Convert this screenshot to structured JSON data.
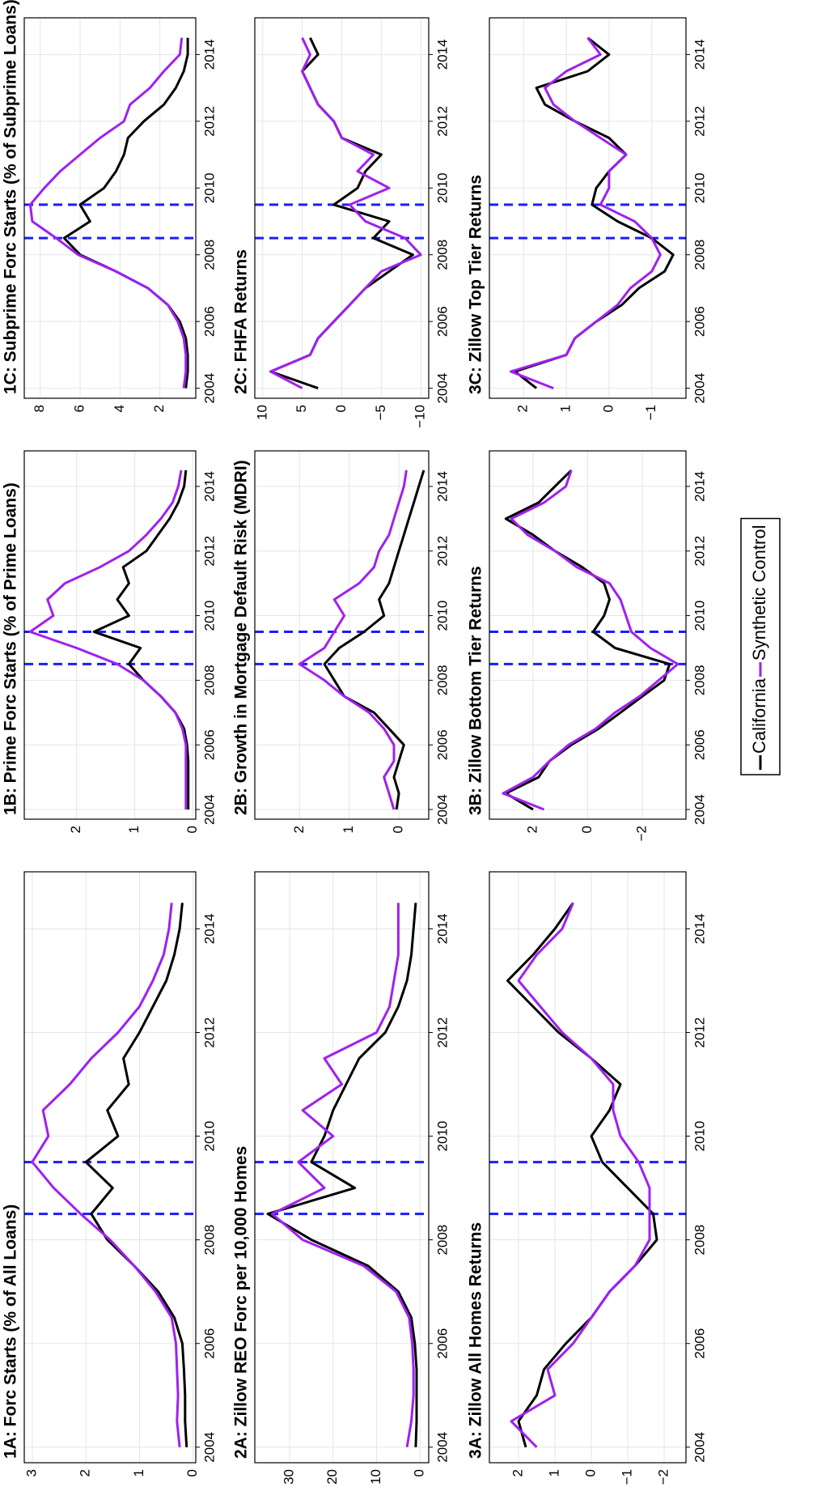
{
  "chart_data": [
    {
      "type": "line",
      "title": "1A: Forc Starts (% of All Loans)",
      "x": [
        2004,
        2004.5,
        2005,
        2005.5,
        2006,
        2006.5,
        2007,
        2007.5,
        2008,
        2008.5,
        2009,
        2009.5,
        2010,
        2010.5,
        2011,
        2011.5,
        2012,
        2012.5,
        2013,
        2013.5,
        2014,
        2014.5
      ],
      "series": [
        {
          "name": "California",
          "color": "#000000",
          "values": [
            0.12,
            0.15,
            0.15,
            0.17,
            0.2,
            0.35,
            0.65,
            1.1,
            1.6,
            1.9,
            1.5,
            2.0,
            1.4,
            1.6,
            1.2,
            1.3,
            1.0,
            0.75,
            0.5,
            0.35,
            0.25,
            0.2
          ]
        },
        {
          "name": "Synthetic Control",
          "color": "#a020f0",
          "values": [
            0.25,
            0.3,
            0.28,
            0.3,
            0.32,
            0.4,
            0.7,
            1.1,
            1.55,
            2.1,
            2.6,
            3.0,
            2.7,
            2.8,
            2.3,
            1.9,
            1.4,
            1.0,
            0.75,
            0.55,
            0.45,
            0.4
          ]
        }
      ],
      "xlim": [
        2003.7,
        2015.1
      ],
      "xticks": [
        2004,
        2006,
        2008,
        2010,
        2012,
        2014
      ],
      "ylim": [
        -0.05,
        3.15
      ],
      "yticks": [
        0,
        1,
        2,
        3
      ],
      "vlines": [
        2008.5,
        2009.5
      ],
      "grid": true
    },
    {
      "type": "line",
      "title": "1B: Prime Forc Starts (% of Prime Loans)",
      "x": [
        2004,
        2004.5,
        2005,
        2005.5,
        2006,
        2006.5,
        2007,
        2007.5,
        2008,
        2008.5,
        2009,
        2009.5,
        2010,
        2010.5,
        2011,
        2011.5,
        2012,
        2012.5,
        2013,
        2013.5,
        2014,
        2014.5
      ],
      "series": [
        {
          "name": "California",
          "color": "#000000",
          "values": [
            0.08,
            0.08,
            0.08,
            0.08,
            0.1,
            0.15,
            0.3,
            0.55,
            0.85,
            1.1,
            0.9,
            1.7,
            1.1,
            1.3,
            1.1,
            1.2,
            0.8,
            0.6,
            0.4,
            0.25,
            0.15,
            0.12
          ]
        },
        {
          "name": "Synthetic Control",
          "color": "#a020f0",
          "values": [
            0.12,
            0.12,
            0.12,
            0.12,
            0.12,
            0.18,
            0.3,
            0.55,
            0.85,
            1.3,
            2.0,
            2.8,
            2.4,
            2.5,
            2.2,
            1.6,
            1.1,
            0.8,
            0.55,
            0.35,
            0.25,
            0.2
          ]
        }
      ],
      "xlim": [
        2003.7,
        2015.1
      ],
      "xticks": [
        2004,
        2006,
        2008,
        2010,
        2012,
        2014
      ],
      "ylim": [
        -0.05,
        2.9
      ],
      "yticks": [
        0,
        1,
        2
      ],
      "vlines": [
        2008.5,
        2009.5
      ],
      "grid": true
    },
    {
      "type": "line",
      "title": "1C: Subprime Forc Starts (% of Subprime Loans)",
      "x": [
        2004,
        2004.5,
        2005,
        2005.5,
        2006,
        2006.5,
        2007,
        2007.5,
        2008,
        2008.5,
        2009,
        2009.5,
        2010,
        2010.5,
        2011,
        2011.5,
        2012,
        2012.5,
        2013,
        2013.5,
        2014,
        2014.5
      ],
      "series": [
        {
          "name": "California",
          "color": "#000000",
          "values": [
            0.7,
            0.6,
            0.6,
            0.7,
            1.0,
            1.6,
            2.6,
            4.2,
            6.0,
            6.8,
            5.5,
            6.0,
            4.8,
            4.2,
            3.8,
            3.6,
            2.8,
            1.8,
            1.2,
            0.8,
            0.6,
            0.6
          ]
        },
        {
          "name": "Synthetic Control",
          "color": "#a020f0",
          "values": [
            0.8,
            0.7,
            0.7,
            0.8,
            1.1,
            1.6,
            2.6,
            4.2,
            6.1,
            7.2,
            8.4,
            8.5,
            7.8,
            7.0,
            6.0,
            5.0,
            3.8,
            3.5,
            2.5,
            1.8,
            1.0,
            0.9
          ]
        }
      ],
      "xlim": [
        2003.7,
        2015.1
      ],
      "xticks": [
        2004,
        2006,
        2008,
        2010,
        2012,
        2014
      ],
      "ylim": [
        0.2,
        8.8
      ],
      "yticks": [
        2,
        4,
        6,
        8
      ],
      "vlines": [
        2008.5,
        2009.5
      ],
      "grid": true
    },
    {
      "type": "line",
      "title": "2A: Zillow REO Forc per 10,000 Homes",
      "x": [
        2004,
        2004.5,
        2005,
        2005.5,
        2006,
        2006.5,
        2007,
        2007.5,
        2008,
        2008.5,
        2009,
        2009.5,
        2010,
        2010.5,
        2011,
        2011.5,
        2012,
        2012.5,
        2013,
        2013.5,
        2014,
        2014.5
      ],
      "series": [
        {
          "name": "California",
          "color": "#000000",
          "values": [
            1,
            0.8,
            0.8,
            0.8,
            1.2,
            2,
            5,
            12,
            25,
            35,
            15,
            25,
            22,
            20,
            17,
            14,
            8,
            5,
            3,
            2,
            1.5,
            1
          ]
        },
        {
          "name": "Synthetic Control",
          "color": "#a020f0",
          "values": [
            3,
            2,
            1.5,
            1.5,
            1.8,
            2.5,
            5.5,
            13,
            27,
            34,
            22,
            28,
            20,
            27,
            18,
            22,
            10,
            7,
            6,
            5,
            5,
            5
          ]
        }
      ],
      "xlim": [
        2003.7,
        2015.1
      ],
      "xticks": [
        2004,
        2006,
        2008,
        2010,
        2012,
        2014
      ],
      "ylim": [
        -2,
        38
      ],
      "yticks": [
        0,
        10,
        20,
        30
      ],
      "vlines": [
        2008.5,
        2009.5
      ],
      "grid": true
    },
    {
      "type": "line",
      "title": "2B: Growth in Mortgage Default Risk (MDRI)",
      "x": [
        2004,
        2004.5,
        2005,
        2005.5,
        2006,
        2006.5,
        2007,
        2007.5,
        2008,
        2008.5,
        2009,
        2009.5,
        2010,
        2010.5,
        2011,
        2011.5,
        2012,
        2012.5,
        2013,
        2013.5,
        2014,
        2014.5
      ],
      "series": [
        {
          "name": "California",
          "color": "#000000",
          "values": [
            0.05,
            0,
            0.1,
            0,
            -0.1,
            0.2,
            0.5,
            1.1,
            1.3,
            1.5,
            1.2,
            0.7,
            0.3,
            0.4,
            0.2,
            0.1,
            0,
            -0.1,
            -0.2,
            -0.3,
            -0.4,
            -0.5
          ]
        },
        {
          "name": "Synthetic Control",
          "color": "#a020f0",
          "values": [
            0.1,
            0.2,
            0.3,
            0.1,
            0.1,
            0.3,
            0.6,
            1.1,
            1.5,
            2.0,
            1.5,
            1.3,
            1.1,
            1.3,
            0.8,
            0.5,
            0.4,
            0.2,
            0.1,
            0,
            -0.1,
            -0.15
          ]
        }
      ],
      "xlim": [
        2003.7,
        2015.1
      ],
      "xticks": [
        2004,
        2006,
        2008,
        2010,
        2012,
        2014
      ],
      "ylim": [
        -0.6,
        2.9
      ],
      "yticks": [
        0,
        1,
        2
      ],
      "vlines": [
        2008.5,
        2009.5
      ],
      "grid": true
    },
    {
      "type": "line",
      "title": "2C: FHFA Returns",
      "x": [
        2004,
        2004.5,
        2005,
        2005.5,
        2006,
        2006.5,
        2007,
        2007.5,
        2008,
        2008.5,
        2009,
        2009.5,
        2010,
        2010.5,
        2011,
        2011.5,
        2012,
        2012.5,
        2013,
        2013.5,
        2014,
        2014.5
      ],
      "series": [
        {
          "name": "California",
          "color": "#000000",
          "values": [
            3,
            9,
            4,
            3,
            1,
            -1,
            -3,
            -6,
            -9,
            -4,
            -6,
            1,
            -2,
            -3,
            -5,
            0,
            1,
            3,
            4,
            5,
            3,
            4
          ]
        },
        {
          "name": "Synthetic Control",
          "color": "#a020f0",
          "values": [
            5,
            9,
            4,
            3,
            1,
            -1,
            -3,
            -5,
            -10,
            -8,
            -3,
            -1,
            -6,
            -2,
            -4,
            0,
            1,
            3,
            4,
            5,
            4,
            5
          ]
        }
      ],
      "xlim": [
        2003.7,
        2015.1
      ],
      "xticks": [
        2004,
        2006,
        2008,
        2010,
        2012,
        2014
      ],
      "ylim": [
        -11,
        11
      ],
      "yticks": [
        {
          "value": -10,
          "label": "−10"
        },
        {
          "value": -5,
          "label": "−5"
        },
        0,
        5,
        10
      ],
      "vlines": [
        2008.5,
        2009.5
      ],
      "grid": true
    },
    {
      "type": "line",
      "title": "3A: Zillow All Homes Returns",
      "x": [
        2004,
        2004.5,
        2005,
        2005.5,
        2006,
        2006.5,
        2007,
        2007.5,
        2008,
        2008.5,
        2009,
        2009.5,
        2010,
        2010.5,
        2011,
        2011.5,
        2012,
        2012.5,
        2013,
        2013.5,
        2014,
        2014.5
      ],
      "series": [
        {
          "name": "California",
          "color": "#000000",
          "values": [
            1.8,
            2.0,
            1.5,
            1.3,
            0.7,
            0.0,
            -0.5,
            -1.2,
            -1.8,
            -1.7,
            -1.0,
            -0.3,
            0,
            -0.5,
            -0.8,
            0.0,
            0.9,
            1.6,
            2.3,
            1.6,
            1.0,
            0.5
          ]
        },
        {
          "name": "Synthetic Control",
          "color": "#a020f0",
          "values": [
            1.5,
            2.2,
            1.0,
            1.2,
            0.5,
            0.0,
            -0.5,
            -1.2,
            -1.6,
            -1.6,
            -1.6,
            -1.3,
            -0.8,
            -0.6,
            -0.6,
            0.0,
            0.8,
            1.4,
            2.0,
            1.5,
            0.8,
            0.5
          ]
        }
      ],
      "xlim": [
        2003.7,
        2015.1
      ],
      "xticks": [
        2004,
        2006,
        2008,
        2010,
        2012,
        2014
      ],
      "ylim": [
        -2.6,
        2.8
      ],
      "yticks": [
        {
          "value": -2,
          "label": "−2"
        },
        {
          "value": -1,
          "label": "−1"
        },
        0,
        1,
        2
      ],
      "vlines": [
        2008.5,
        2009.5
      ],
      "grid": true
    },
    {
      "type": "line",
      "title": "3B: Zillow Bottom Tier Returns",
      "x": [
        2004,
        2004.5,
        2005,
        2005.5,
        2006,
        2006.5,
        2007,
        2007.5,
        2008,
        2008.5,
        2009,
        2009.5,
        2010,
        2010.5,
        2011,
        2011.5,
        2012,
        2012.5,
        2013,
        2013.5,
        2014,
        2014.5
      ],
      "series": [
        {
          "name": "California",
          "color": "#000000",
          "values": [
            2.0,
            3.0,
            1.8,
            1.4,
            0.6,
            -0.4,
            -1.2,
            -2.0,
            -2.8,
            -3.0,
            -1.0,
            -0.2,
            -0.6,
            -0.8,
            -0.6,
            0.2,
            1.2,
            2.0,
            3.0,
            1.8,
            1.2,
            0.6
          ]
        },
        {
          "name": "Synthetic Control",
          "color": "#a020f0",
          "values": [
            1.6,
            3.1,
            2.0,
            1.4,
            0.7,
            -0.3,
            -1.0,
            -1.9,
            -2.6,
            -3.3,
            -2.3,
            -1.6,
            -1.4,
            -1.2,
            -0.8,
            0.4,
            1.2,
            2.2,
            2.8,
            1.6,
            0.8,
            0.6
          ]
        }
      ],
      "xlim": [
        2003.7,
        2015.1
      ],
      "xticks": [
        2004,
        2006,
        2008,
        2010,
        2012,
        2014
      ],
      "ylim": [
        -3.6,
        3.6
      ],
      "yticks": [
        {
          "value": -2,
          "label": "−2"
        },
        0,
        2
      ],
      "vlines": [
        2008.5,
        2009.5
      ],
      "grid": true
    },
    {
      "type": "line",
      "title": "3C: Zillow Top Tier Returns",
      "x": [
        2004,
        2004.5,
        2005,
        2005.5,
        2006,
        2006.5,
        2007,
        2007.5,
        2008,
        2008.5,
        2009,
        2009.5,
        2010,
        2010.5,
        2011,
        2011.5,
        2012,
        2012.5,
        2013,
        2013.5,
        2014,
        2014.5
      ],
      "series": [
        {
          "name": "California",
          "color": "#000000",
          "values": [
            1.7,
            2.2,
            1.0,
            0.8,
            0.3,
            -0.3,
            -0.7,
            -1.3,
            -1.5,
            -1.0,
            -0.2,
            0.4,
            0.3,
            0.0,
            -0.4,
            0.0,
            0.8,
            1.5,
            1.7,
            0.5,
            0.0,
            0.5
          ]
        },
        {
          "name": "Synthetic Control",
          "color": "#a020f0",
          "values": [
            1.3,
            2.3,
            1.0,
            0.8,
            0.3,
            -0.2,
            -0.5,
            -1.0,
            -1.2,
            -1.0,
            -0.6,
            0.2,
            0.0,
            0.0,
            -0.4,
            0.2,
            0.8,
            1.3,
            1.5,
            1.0,
            0.2,
            0.5
          ]
        }
      ],
      "xlim": [
        2003.7,
        2015.1
      ],
      "xticks": [
        2004,
        2006,
        2008,
        2010,
        2012,
        2014
      ],
      "ylim": [
        -1.8,
        2.8
      ],
      "yticks": [
        {
          "value": -1,
          "label": "−1"
        },
        0,
        1,
        2
      ],
      "vlines": [
        2008.5,
        2009.5
      ],
      "grid": true
    }
  ]
}
